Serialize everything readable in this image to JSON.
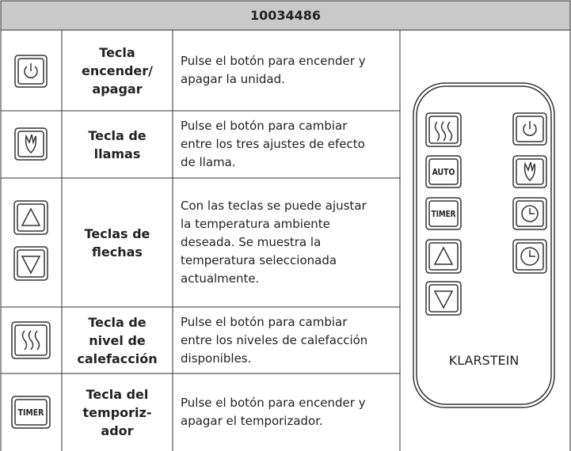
{
  "header": {
    "title": "10034486"
  },
  "rows": [
    {
      "name": "Tecla\nencender/\napagar",
      "description": "Pulse el botón para encender y\napagar la unidad."
    },
    {
      "name": "Tecla de\nllamas",
      "description": "Pulse el botón para cambiar\nentre los tres ajustes de efecto\nde llama."
    },
    {
      "name": "Teclas de\nflechas",
      "description": "Con las teclas se puede ajustar\nla temperatura ambiente\ndeseada. Se muestra la\ntemperatura seleccionada\nactualmente."
    },
    {
      "name": "Tecla de\nnivel de\ncalefacción",
      "description": "Pulse el botón para cambiar\nentre los niveles de calefacción\ndisponibles."
    },
    {
      "name": "Tecla del\ntemporiz-\nador",
      "description": "Pulse el botón para encender y\napagar el temporizador.",
      "icon_label": "TIMER"
    }
  ],
  "remote": {
    "labels": [
      "AUTO",
      "TIMER"
    ],
    "brand": "KLARSTEIN"
  }
}
